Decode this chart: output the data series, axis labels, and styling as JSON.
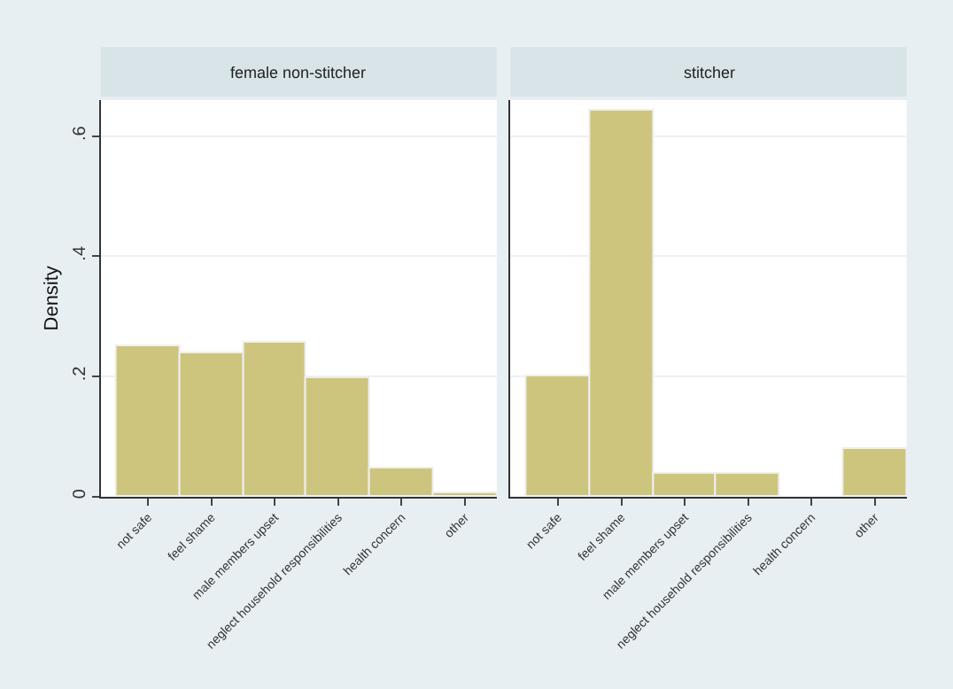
{
  "chart_data": [
    {
      "type": "bar",
      "title": "female non-stitcher",
      "ylabel": "Density",
      "categories": [
        "not safe",
        "feel shame",
        "male members upset",
        "neglect household responsibilities",
        "health concern",
        "other"
      ],
      "values": [
        0.251,
        0.239,
        0.256,
        0.197,
        0.046,
        0.004
      ],
      "color": "#cdc57e",
      "ylim": [
        0,
        0.66
      ],
      "yticks": [
        {
          "value": 0,
          "label": "0"
        },
        {
          "value": 0.2,
          "label": ".2"
        },
        {
          "value": 0.4,
          "label": ".4"
        },
        {
          "value": 0.6,
          "label": ".6"
        }
      ],
      "grid": "y"
    },
    {
      "type": "bar",
      "title": "stitcher",
      "categories": [
        "not safe",
        "feel shame",
        "male members upset",
        "neglect household responsibilities",
        "health concern",
        "other"
      ],
      "values": [
        0.2,
        0.643,
        0.039,
        0.039,
        0,
        0.079
      ],
      "color": "#cdc57e",
      "ylim": [
        0,
        0.66
      ],
      "yticks": [
        {
          "value": 0,
          "label": null
        },
        {
          "value": 0.2,
          "label": null
        },
        {
          "value": 0.4,
          "label": null
        },
        {
          "value": 0.6,
          "label": null
        }
      ],
      "grid": "y",
      "tick_labels": "x"
    }
  ]
}
